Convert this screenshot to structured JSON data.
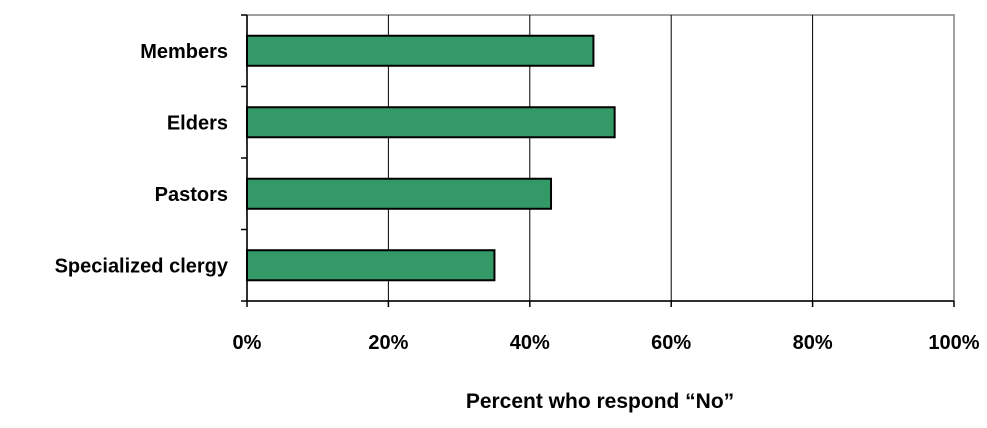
{
  "chart_data": {
    "type": "bar",
    "orientation": "horizontal",
    "categories": [
      "Members",
      "Elders",
      "Pastors",
      "Specialized clergy"
    ],
    "values": [
      49,
      52,
      43,
      35
    ],
    "xlabel": "Percent who respond “No”",
    "ylabel": "",
    "title": "",
    "xlim": [
      0,
      100
    ],
    "xticks": [
      "0%",
      "20%",
      "40%",
      "60%",
      "80%",
      "100%"
    ],
    "grid": "vertical",
    "legend": "none",
    "bar_color": "#339966"
  }
}
